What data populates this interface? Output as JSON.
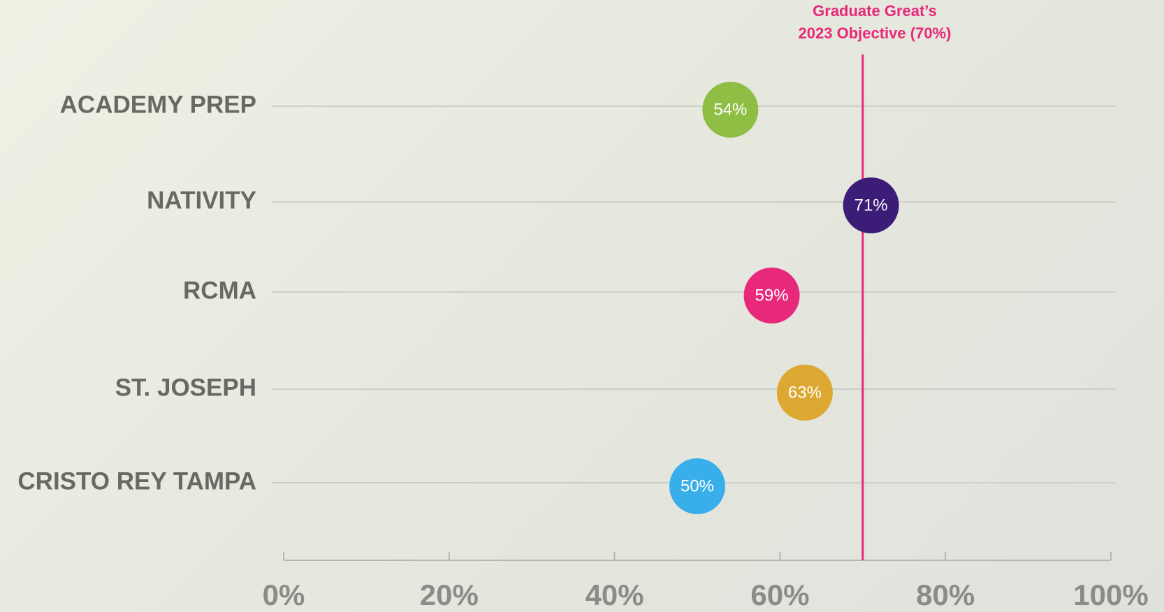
{
  "chart_data": {
    "type": "dot",
    "categories": [
      "ACADEMY PREP",
      "NATIVITY",
      "RCMA",
      "ST. JOSEPH",
      "CRISTO REY TAMPA"
    ],
    "values": [
      54,
      71,
      59,
      63,
      50
    ],
    "value_labels": [
      "54%",
      "71%",
      "59%",
      "63%",
      "50%"
    ],
    "colors": [
      "#8fbe45",
      "#3b1d78",
      "#e8287a",
      "#dca832",
      "#38aeea"
    ],
    "xlim": [
      0,
      100
    ],
    "xticks": [
      {
        "value": 0,
        "label": "0%"
      },
      {
        "value": 20,
        "label": "20%"
      },
      {
        "value": 40,
        "label": "40%"
      },
      {
        "value": 60,
        "label": "60%"
      },
      {
        "value": 80,
        "label": "80%"
      },
      {
        "value": 100,
        "label": "100%"
      }
    ],
    "reference_line": {
      "value": 70,
      "color": "#e8287a",
      "label": [
        "Graduate Great’s",
        "2023 Objective (70%)"
      ]
    }
  }
}
